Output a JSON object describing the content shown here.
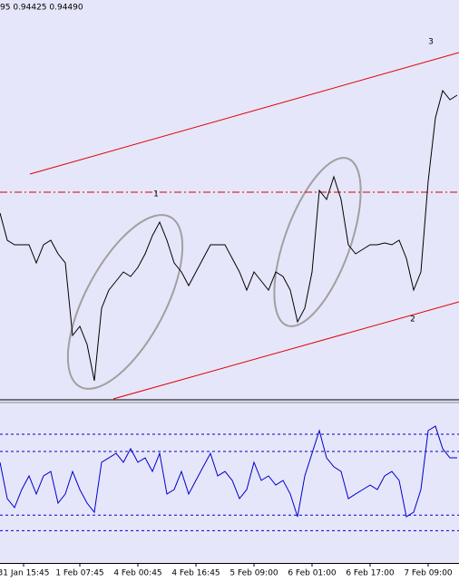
{
  "chart_data": [
    {
      "type": "line",
      "title": "95 0.94425 0.94490",
      "color": "#000000",
      "x": [
        0,
        2,
        4,
        6,
        8,
        10,
        12,
        14,
        16,
        18,
        20,
        22,
        24,
        26,
        28,
        30,
        32,
        34,
        36,
        38,
        40,
        42,
        44,
        46,
        48,
        50,
        52,
        54,
        56,
        58,
        60,
        62,
        64,
        66,
        68,
        70,
        72,
        74,
        76,
        78,
        80,
        82,
        84,
        86,
        88,
        90,
        92,
        94,
        96,
        98,
        100,
        102,
        104,
        106,
        108,
        110,
        112,
        114,
        116,
        118,
        120,
        122,
        124,
        126
      ],
      "values": [
        0.93825,
        0.93675,
        0.9365,
        0.9365,
        0.9365,
        0.9355,
        0.9365,
        0.93675,
        0.936,
        0.9355,
        0.9315,
        0.932,
        0.931,
        0.929,
        0.933,
        0.934,
        0.9345,
        0.935,
        0.93475,
        0.93525,
        0.936,
        0.937,
        0.93775,
        0.93675,
        0.9355,
        0.935,
        0.93425,
        0.935,
        0.93575,
        0.9365,
        0.9365,
        0.9365,
        0.93575,
        0.935,
        0.934,
        0.935,
        0.9345,
        0.934,
        0.935,
        0.93475,
        0.934,
        0.93225,
        0.933,
        0.935,
        0.9395,
        0.939,
        0.94025,
        0.939,
        0.9365,
        0.936,
        0.93625,
        0.9365,
        0.9365,
        0.9366,
        0.9365,
        0.93675,
        0.93575,
        0.934,
        0.935,
        0.94,
        0.9435,
        0.945,
        0.9445,
        0.94475
      ],
      "xlim": [
        0,
        126.5
      ],
      "ylim": [
        0.928,
        0.95
      ],
      "lines": [
        {
          "x": [
            8.25,
            126.5
          ],
          "y": [
            0.9404,
            0.9471
          ],
          "color": "#e00000",
          "style": "solid"
        },
        {
          "x": [
            31.25,
            126.5
          ],
          "y": [
            0.928,
            0.93335
          ],
          "color": "#e00000",
          "style": "solid"
        },
        {
          "x": [
            0,
            126.5
          ],
          "y": [
            0.9394,
            0.9394
          ],
          "color": "#d00000",
          "style": "dashdot"
        }
      ],
      "annotations": [
        {
          "text": "1",
          "x": 43,
          "y": 0.9393,
          "color": "#e08020"
        },
        {
          "text": "2",
          "x": 113.75,
          "y": 0.9324,
          "color": "#e08020"
        },
        {
          "text": "3",
          "x": 118.75,
          "y": 0.9477,
          "color": "#e08020"
        }
      ]
    },
    {
      "type": "line",
      "color": "#0000cc",
      "x": [
        0,
        2,
        4,
        6,
        8,
        10,
        12,
        14,
        16,
        18,
        20,
        22,
        24,
        26,
        28,
        30,
        32,
        34,
        36,
        38,
        40,
        42,
        44,
        46,
        48,
        50,
        52,
        54,
        56,
        58,
        60,
        62,
        64,
        66,
        68,
        70,
        72,
        74,
        76,
        78,
        80,
        82,
        84,
        86,
        88,
        90,
        92,
        94,
        96,
        98,
        100,
        102,
        104,
        106,
        108,
        110,
        112,
        114,
        116,
        118,
        120,
        122,
        124,
        126
      ],
      "values": [
        63.7,
        42.6,
        37.4,
        47.9,
        55.8,
        45.3,
        55.8,
        58.4,
        40,
        45.3,
        58.4,
        47.9,
        40,
        34.7,
        63.7,
        66.3,
        68.9,
        63.7,
        71.6,
        63.7,
        66.3,
        58.4,
        68.9,
        45.3,
        47.9,
        58.4,
        45.3,
        53.2,
        61.1,
        68.9,
        55.8,
        58.4,
        53.2,
        42.6,
        47.9,
        63.7,
        53.2,
        55.8,
        50.5,
        53.2,
        45.3,
        32.1,
        55.8,
        68.9,
        82.1,
        66.3,
        61.1,
        58.4,
        42.6,
        45.3,
        47.9,
        50.5,
        47.9,
        55.8,
        58.4,
        53.2,
        32.1,
        34.7,
        47.9,
        82.1,
        84.7,
        71.6,
        66.3,
        66.3
      ],
      "xlim": [
        0,
        126.5
      ],
      "ylim": [
        5,
        90
      ],
      "levels": [
        80,
        70,
        33,
        24
      ],
      "level_color": "#0000cc",
      "xticks": [
        {
          "value": 6.5,
          "label": "31 Jan 15:45"
        },
        {
          "value": 22,
          "label": "1 Feb 07:45"
        },
        {
          "value": 38,
          "label": "4 Feb 00:45"
        },
        {
          "value": 54,
          "label": "4 Feb 16:45"
        },
        {
          "value": 70,
          "label": "5 Feb 09:00"
        },
        {
          "value": 86,
          "label": "6 Feb 01:00"
        },
        {
          "value": 102,
          "label": "6 Feb 17:00"
        },
        {
          "value": 118,
          "label": "7 Feb 09:00"
        }
      ]
    }
  ]
}
